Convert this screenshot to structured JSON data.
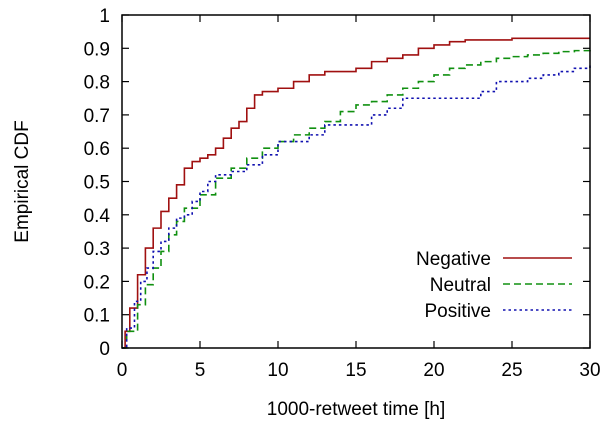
{
  "chart_data": {
    "type": "line",
    "title": "",
    "xlabel": "1000-retweet time [h]",
    "ylabel": "Empirical CDF",
    "xlim": [
      0,
      30
    ],
    "ylim": [
      0,
      1
    ],
    "x_ticks": [
      "0",
      "5",
      "10",
      "15",
      "20",
      "25",
      "30"
    ],
    "y_ticks": [
      "0",
      "0.1",
      "0.2",
      "0.3",
      "0.4",
      "0.5",
      "0.6",
      "0.7",
      "0.8",
      "0.9",
      "1"
    ],
    "grid": false,
    "legend_position": "bottom-right",
    "series": [
      {
        "name": "Negative",
        "color": "#a01010",
        "style": "solid",
        "points": [
          [
            0,
            0
          ],
          [
            0.2,
            0.05
          ],
          [
            0.5,
            0.12
          ],
          [
            1,
            0.22
          ],
          [
            1.5,
            0.3
          ],
          [
            2,
            0.36
          ],
          [
            2.5,
            0.41
          ],
          [
            3,
            0.45
          ],
          [
            3.5,
            0.49
          ],
          [
            4,
            0.54
          ],
          [
            4.5,
            0.56
          ],
          [
            5,
            0.57
          ],
          [
            5.5,
            0.58
          ],
          [
            6,
            0.6
          ],
          [
            6.5,
            0.63
          ],
          [
            7,
            0.66
          ],
          [
            7.5,
            0.68
          ],
          [
            8,
            0.72
          ],
          [
            8.5,
            0.76
          ],
          [
            9,
            0.77
          ],
          [
            10,
            0.78
          ],
          [
            11,
            0.8
          ],
          [
            12,
            0.82
          ],
          [
            13,
            0.83
          ],
          [
            14,
            0.83
          ],
          [
            15,
            0.84
          ],
          [
            16,
            0.86
          ],
          [
            17,
            0.87
          ],
          [
            18,
            0.88
          ],
          [
            19,
            0.9
          ],
          [
            20,
            0.91
          ],
          [
            21,
            0.92
          ],
          [
            22,
            0.925
          ],
          [
            25,
            0.93
          ],
          [
            28,
            0.93
          ],
          [
            30,
            0.93
          ]
        ]
      },
      {
        "name": "Neutral",
        "color": "#109010",
        "style": "dashed",
        "points": [
          [
            0,
            0
          ],
          [
            0.3,
            0.05
          ],
          [
            1,
            0.13
          ],
          [
            1.5,
            0.19
          ],
          [
            2,
            0.24
          ],
          [
            2.5,
            0.29
          ],
          [
            3,
            0.34
          ],
          [
            3.5,
            0.38
          ],
          [
            4,
            0.42
          ],
          [
            5,
            0.46
          ],
          [
            6,
            0.51
          ],
          [
            7,
            0.54
          ],
          [
            8,
            0.57
          ],
          [
            9,
            0.6
          ],
          [
            10,
            0.62
          ],
          [
            11,
            0.64
          ],
          [
            12,
            0.66
          ],
          [
            13,
            0.68
          ],
          [
            14,
            0.71
          ],
          [
            15,
            0.73
          ],
          [
            16,
            0.74
          ],
          [
            17,
            0.76
          ],
          [
            18,
            0.78
          ],
          [
            19,
            0.8
          ],
          [
            20,
            0.82
          ],
          [
            21,
            0.84
          ],
          [
            22,
            0.85
          ],
          [
            23,
            0.86
          ],
          [
            24,
            0.87
          ],
          [
            25,
            0.875
          ],
          [
            26,
            0.88
          ],
          [
            27,
            0.885
          ],
          [
            28,
            0.89
          ],
          [
            29,
            0.893
          ],
          [
            30,
            0.9
          ]
        ]
      },
      {
        "name": "Positive",
        "color": "#1010b0",
        "style": "dotted",
        "points": [
          [
            0,
            0
          ],
          [
            0.3,
            0.06
          ],
          [
            0.8,
            0.14
          ],
          [
            1.2,
            0.2
          ],
          [
            1.6,
            0.24
          ],
          [
            2,
            0.29
          ],
          [
            2.5,
            0.32
          ],
          [
            3,
            0.36
          ],
          [
            3.5,
            0.39
          ],
          [
            4,
            0.4
          ],
          [
            4.5,
            0.44
          ],
          [
            5,
            0.47
          ],
          [
            5.5,
            0.5
          ],
          [
            6,
            0.52
          ],
          [
            7,
            0.53
          ],
          [
            8,
            0.55
          ],
          [
            9,
            0.58
          ],
          [
            10,
            0.62
          ],
          [
            11,
            0.62
          ],
          [
            12,
            0.64
          ],
          [
            13,
            0.67
          ],
          [
            14,
            0.67
          ],
          [
            15,
            0.67
          ],
          [
            16,
            0.7
          ],
          [
            17,
            0.72
          ],
          [
            18,
            0.75
          ],
          [
            19,
            0.75
          ],
          [
            20,
            0.75
          ],
          [
            22,
            0.75
          ],
          [
            23,
            0.77
          ],
          [
            24,
            0.8
          ],
          [
            25,
            0.8
          ],
          [
            26,
            0.81
          ],
          [
            27,
            0.82
          ],
          [
            28,
            0.83
          ],
          [
            29,
            0.84
          ],
          [
            30,
            0.85
          ]
        ]
      }
    ]
  }
}
